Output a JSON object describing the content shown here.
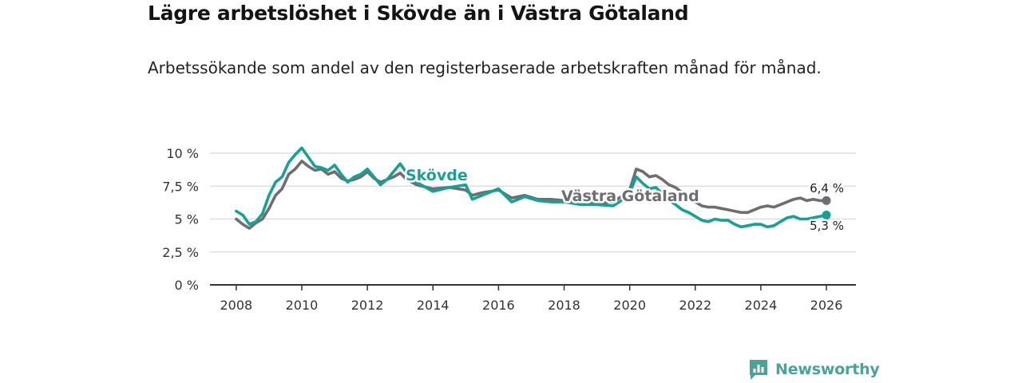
{
  "header": {
    "title": "Lägre arbetslöshet i Skövde än i Västra Götaland",
    "subtitle": "Arbetssökande som andel av den registerbaserade arbetskraften månad för månad."
  },
  "branding": {
    "name": "Newsworthy"
  },
  "colors": {
    "skovde": "#16a194",
    "vg": "#6d6d72",
    "grid": "#d9d9d9",
    "axis": "#333333",
    "brand": "#4aa29a"
  },
  "chart_data": {
    "type": "line",
    "title": "Lägre arbetslöshet i Skövde än i Västra Götaland",
    "subtitle": "Arbetssökande som andel av den registerbaserade arbetskraften månad för månad.",
    "xlabel": "",
    "ylabel": "",
    "xlim": [
      2007.2,
      2026.9
    ],
    "ylim": [
      0,
      10
    ],
    "grid": true,
    "x_ticks": [
      2008,
      2010,
      2012,
      2014,
      2016,
      2018,
      2020,
      2022,
      2024,
      2026
    ],
    "x_tick_labels": [
      "2008",
      "2010",
      "2012",
      "2014",
      "2016",
      "2018",
      "2020",
      "2022",
      "2024",
      "2026"
    ],
    "y_ticks": [
      0,
      2.5,
      5,
      7.5,
      10
    ],
    "y_tick_labels": [
      "0 %",
      "2,5 %",
      "5 %",
      "7,5 %",
      "10 %"
    ],
    "series": [
      {
        "name": "Västra Götaland",
        "label": "Västra Götaland",
        "end_label": "6,4 %",
        "x": [
          2008.0,
          2008.2,
          2008.4,
          2008.6,
          2008.8,
          2009.0,
          2009.2,
          2009.4,
          2009.6,
          2009.8,
          2010.0,
          2010.2,
          2010.4,
          2010.6,
          2010.8,
          2011.0,
          2011.2,
          2011.4,
          2011.6,
          2011.8,
          2012.0,
          2012.2,
          2012.4,
          2012.6,
          2012.8,
          2013.0,
          2013.2,
          2013.5,
          2014.0,
          2014.5,
          2015.0,
          2015.2,
          2015.5,
          2016.0,
          2016.4,
          2016.8,
          2017.2,
          2017.6,
          2018.0,
          2018.5,
          2019.0,
          2019.5,
          2019.8,
          2020.0,
          2020.2,
          2020.4,
          2020.6,
          2020.8,
          2021.0,
          2021.2,
          2021.4,
          2021.6,
          2021.8,
          2022.0,
          2022.2,
          2022.4,
          2022.6,
          2022.8,
          2023.0,
          2023.2,
          2023.4,
          2023.6,
          2023.8,
          2024.0,
          2024.2,
          2024.4,
          2024.6,
          2024.8,
          2025.0,
          2025.2,
          2025.4,
          2025.6,
          2025.8,
          2026.0
        ],
        "values": [
          5.0,
          4.6,
          4.3,
          4.7,
          5.0,
          5.8,
          6.8,
          7.3,
          8.4,
          8.8,
          9.4,
          9.0,
          8.7,
          8.8,
          8.4,
          8.6,
          8.1,
          7.9,
          8.0,
          8.2,
          8.6,
          8.1,
          7.8,
          8.0,
          8.2,
          8.5,
          8.0,
          7.6,
          7.3,
          7.4,
          7.2,
          6.8,
          7.0,
          7.2,
          6.6,
          6.8,
          6.5,
          6.5,
          6.4,
          6.4,
          6.2,
          6.3,
          6.8,
          7.2,
          8.8,
          8.6,
          8.2,
          8.3,
          8.0,
          7.6,
          7.4,
          7.0,
          6.6,
          6.3,
          6.0,
          5.9,
          5.9,
          5.8,
          5.7,
          5.6,
          5.5,
          5.5,
          5.7,
          5.9,
          6.0,
          5.9,
          6.1,
          6.3,
          6.5,
          6.6,
          6.4,
          6.5,
          6.4,
          6.4
        ]
      },
      {
        "name": "Skövde",
        "label": "Skövde",
        "end_label": "5,3 %",
        "x": [
          2008.0,
          2008.2,
          2008.4,
          2008.6,
          2008.8,
          2009.0,
          2009.2,
          2009.4,
          2009.6,
          2009.8,
          2010.0,
          2010.2,
          2010.4,
          2010.6,
          2010.8,
          2011.0,
          2011.2,
          2011.4,
          2011.6,
          2011.8,
          2012.0,
          2012.2,
          2012.4,
          2012.6,
          2012.8,
          2013.0,
          2013.2,
          2013.5,
          2014.0,
          2014.5,
          2015.0,
          2015.2,
          2015.5,
          2016.0,
          2016.4,
          2016.8,
          2017.2,
          2017.6,
          2018.0,
          2018.5,
          2019.0,
          2019.5,
          2019.8,
          2020.0,
          2020.2,
          2020.4,
          2020.6,
          2020.8,
          2021.0,
          2021.2,
          2021.4,
          2021.6,
          2021.8,
          2022.0,
          2022.2,
          2022.4,
          2022.6,
          2022.8,
          2023.0,
          2023.2,
          2023.4,
          2023.6,
          2023.8,
          2024.0,
          2024.2,
          2024.4,
          2024.6,
          2024.8,
          2025.0,
          2025.2,
          2025.4,
          2025.6,
          2025.8,
          2026.0
        ],
        "values": [
          5.6,
          5.3,
          4.6,
          4.8,
          5.4,
          6.8,
          7.8,
          8.2,
          9.3,
          9.9,
          10.4,
          9.7,
          9.0,
          8.9,
          8.7,
          9.1,
          8.4,
          7.8,
          8.2,
          8.4,
          8.8,
          8.2,
          7.6,
          8.0,
          8.6,
          9.2,
          8.5,
          7.8,
          7.1,
          7.4,
          7.6,
          6.5,
          6.8,
          7.3,
          6.3,
          6.7,
          6.4,
          6.3,
          6.3,
          6.1,
          6.1,
          6.0,
          6.5,
          7.0,
          8.2,
          7.7,
          7.3,
          7.4,
          6.9,
          6.4,
          6.1,
          5.7,
          5.5,
          5.2,
          4.9,
          4.8,
          5.0,
          4.9,
          4.9,
          4.6,
          4.4,
          4.5,
          4.6,
          4.6,
          4.4,
          4.5,
          4.8,
          5.1,
          5.2,
          5.0,
          5.0,
          5.1,
          5.2,
          5.3
        ]
      }
    ],
    "annotations": [
      "Skövde",
      "Västra Götaland",
      "6,4 %",
      "5,3 %"
    ]
  }
}
